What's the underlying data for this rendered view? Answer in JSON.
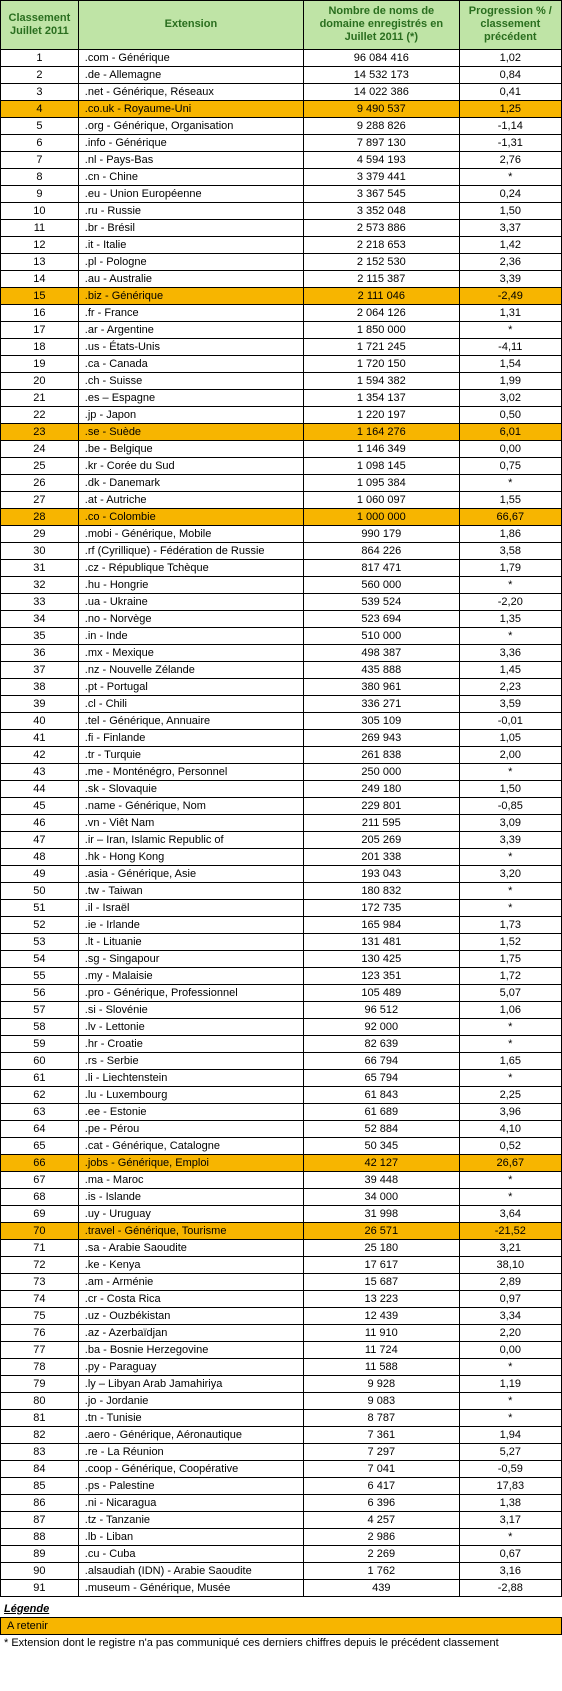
{
  "table": {
    "headers": {
      "rank": "Classement Juillet 2011",
      "ext": "Extension",
      "num": "Nombre de noms de domaine enregistrés en Juillet 2011 (*)",
      "prog": "Progression % / classement précédent"
    },
    "highlight_color": "#f7b500",
    "header_bg": "#bfe4a6",
    "header_fg": "#2a6e1f",
    "rows": [
      {
        "rank": "1",
        "ext": ".com - Générique",
        "num": "96 084 416",
        "prog": "1,02",
        "hl": false
      },
      {
        "rank": "2",
        "ext": ".de - Allemagne",
        "num": "14 532 173",
        "prog": "0,84",
        "hl": false
      },
      {
        "rank": "3",
        "ext": ".net - Générique, Réseaux",
        "num": "14 022 386",
        "prog": "0,41",
        "hl": false
      },
      {
        "rank": "4",
        "ext": ".co.uk  - Royaume-Uni",
        "num": "9 490 537",
        "prog": "1,25",
        "hl": true
      },
      {
        "rank": "5",
        "ext": ".org - Générique, Organisation",
        "num": "9 288 826",
        "prog": "-1,14",
        "hl": false
      },
      {
        "rank": "6",
        "ext": ".info - Générique",
        "num": "7 897 130",
        "prog": "-1,31",
        "hl": false
      },
      {
        "rank": "7",
        "ext": ".nl  - Pays-Bas",
        "num": "4 594 193",
        "prog": "2,76",
        "hl": false
      },
      {
        "rank": "8",
        "ext": ".cn - Chine",
        "num": "3 379 441",
        "prog": "*",
        "hl": false
      },
      {
        "rank": "9",
        "ext": ".eu - Union Européenne",
        "num": "3 367 545",
        "prog": "0,24",
        "hl": false
      },
      {
        "rank": "10",
        "ext": ".ru - Russie",
        "num": "3 352 048",
        "prog": "1,50",
        "hl": false
      },
      {
        "rank": "11",
        "ext": ".br - Brésil",
        "num": "2 573 886",
        "prog": "3,37",
        "hl": false
      },
      {
        "rank": "12",
        "ext": ".it - Italie",
        "num": "2 218 653",
        "prog": "1,42",
        "hl": false
      },
      {
        "rank": "13",
        "ext": ".pl - Pologne",
        "num": "2 152 530",
        "prog": "2,36",
        "hl": false
      },
      {
        "rank": "14",
        "ext": ".au - Australie",
        "num": "2 115 387",
        "prog": "3,39",
        "hl": false
      },
      {
        "rank": "15",
        "ext": ".biz - Générique",
        "num": "2 111 046",
        "prog": "-2,49",
        "hl": true
      },
      {
        "rank": "16",
        "ext": ".fr - France",
        "num": "2 064 126",
        "prog": "1,31",
        "hl": false
      },
      {
        "rank": "17",
        "ext": ".ar - Argentine",
        "num": "1 850 000",
        "prog": "*",
        "hl": false
      },
      {
        "rank": "18",
        "ext": ".us - États-Unis",
        "num": "1 721 245",
        "prog": "-4,11",
        "hl": false
      },
      {
        "rank": "19",
        "ext": ".ca - Canada",
        "num": "1 720 150",
        "prog": "1,54",
        "hl": false
      },
      {
        "rank": "20",
        "ext": ".ch - Suisse",
        "num": "1 594 382",
        "prog": "1,99",
        "hl": false
      },
      {
        "rank": "21",
        "ext": ".es  – Espagne",
        "num": "1 354 137",
        "prog": "3,02",
        "hl": false
      },
      {
        "rank": "22",
        "ext": ".jp - Japon",
        "num": "1 220 197",
        "prog": "0,50",
        "hl": false
      },
      {
        "rank": "23",
        "ext": ".se - Suède",
        "num": "1 164 276",
        "prog": "6,01",
        "hl": true
      },
      {
        "rank": "24",
        "ext": ".be - Belgique",
        "num": "1 146 349",
        "prog": "0,00",
        "hl": false
      },
      {
        "rank": "25",
        "ext": ".kr  - Corée du Sud",
        "num": "1 098 145",
        "prog": "0,75",
        "hl": false
      },
      {
        "rank": "26",
        "ext": ".dk - Danemark",
        "num": "1 095 384",
        "prog": "*",
        "hl": false
      },
      {
        "rank": "27",
        "ext": ".at - Autriche",
        "num": "1 060 097",
        "prog": "1,55",
        "hl": false
      },
      {
        "rank": "28",
        "ext": ".co - Colombie",
        "num": "1 000 000",
        "prog": "66,67",
        "hl": true
      },
      {
        "rank": "29",
        "ext": ".mobi - Générique, Mobile",
        "num": "990 179",
        "prog": "1,86",
        "hl": false
      },
      {
        "rank": "30",
        "ext": ".rf (Cyrillique) - Fédération de Russie",
        "num": "864 226",
        "prog": "3,58",
        "hl": false
      },
      {
        "rank": "31",
        "ext": ".cz - République Tchèque",
        "num": "817 471",
        "prog": "1,79",
        "hl": false
      },
      {
        "rank": "32",
        "ext": ".hu - Hongrie",
        "num": "560 000",
        "prog": "*",
        "hl": false
      },
      {
        "rank": "33",
        "ext": ".ua - Ukraine",
        "num": "539 524",
        "prog": "-2,20",
        "hl": false
      },
      {
        "rank": "34",
        "ext": ".no - Norvège",
        "num": "523 694",
        "prog": "1,35",
        "hl": false
      },
      {
        "rank": "35",
        "ext": ".in - Inde",
        "num": "510 000",
        "prog": "*",
        "hl": false
      },
      {
        "rank": "36",
        "ext": ".mx - Mexique",
        "num": "498 387",
        "prog": "3,36",
        "hl": false
      },
      {
        "rank": "37",
        "ext": ".nz - Nouvelle Zélande",
        "num": "435 888",
        "prog": "1,45",
        "hl": false
      },
      {
        "rank": "38",
        "ext": ".pt - Portugal",
        "num": "380 961",
        "prog": "2,23",
        "hl": false
      },
      {
        "rank": "39",
        "ext": ".cl - Chili",
        "num": "336 271",
        "prog": "3,59",
        "hl": false
      },
      {
        "rank": "40",
        "ext": ".tel - Générique, Annuaire",
        "num": "305 109",
        "prog": "-0,01",
        "hl": false
      },
      {
        "rank": "41",
        "ext": ".fi - Finlande",
        "num": "269 943",
        "prog": "1,05",
        "hl": false
      },
      {
        "rank": "42",
        "ext": ".tr - Turquie",
        "num": "261 838",
        "prog": "2,00",
        "hl": false
      },
      {
        "rank": "43",
        "ext": ".me - Monténégro, Personnel",
        "num": "250 000",
        "prog": "*",
        "hl": false
      },
      {
        "rank": "44",
        "ext": ".sk - Slovaquie",
        "num": "249 180",
        "prog": "1,50",
        "hl": false
      },
      {
        "rank": "45",
        "ext": ".name - Générique, Nom",
        "num": "229 801",
        "prog": "-0,85",
        "hl": false
      },
      {
        "rank": "46",
        "ext": ".vn - Viêt Nam",
        "num": "211 595",
        "prog": "3,09",
        "hl": false
      },
      {
        "rank": "47",
        "ext": ".ir  –  Iran, Islamic Republic of",
        "num": "205 269",
        "prog": "3,39",
        "hl": false
      },
      {
        "rank": "48",
        "ext": ".hk - Hong Kong",
        "num": "201 338",
        "prog": "*",
        "hl": false
      },
      {
        "rank": "49",
        "ext": ".asia - Générique, Asie",
        "num": "193 043",
        "prog": "3,20",
        "hl": false
      },
      {
        "rank": "50",
        "ext": ".tw - Taiwan",
        "num": "180 832",
        "prog": "*",
        "hl": false
      },
      {
        "rank": "51",
        "ext": ".il - Israël",
        "num": "172 735",
        "prog": "*",
        "hl": false
      },
      {
        "rank": "52",
        "ext": ".ie - Irlande",
        "num": "165 984",
        "prog": "1,73",
        "hl": false
      },
      {
        "rank": "53",
        "ext": ".lt - Lituanie",
        "num": "131 481",
        "prog": "1,52",
        "hl": false
      },
      {
        "rank": "54",
        "ext": ".sg - Singapour",
        "num": "130 425",
        "prog": "1,75",
        "hl": false
      },
      {
        "rank": "55",
        "ext": ".my - Malaisie",
        "num": "123 351",
        "prog": "1,72",
        "hl": false
      },
      {
        "rank": "56",
        "ext": ".pro - Générique, Professionnel",
        "num": "105 489",
        "prog": "5,07",
        "hl": false
      },
      {
        "rank": "57",
        "ext": ".si - Slovénie",
        "num": "96 512",
        "prog": "1,06",
        "hl": false
      },
      {
        "rank": "58",
        "ext": ".lv - Lettonie",
        "num": "92 000",
        "prog": "*",
        "hl": false
      },
      {
        "rank": "59",
        "ext": ".hr - Croatie",
        "num": "82 639",
        "prog": "*",
        "hl": false
      },
      {
        "rank": "60",
        "ext": ".rs - Serbie",
        "num": "66 794",
        "prog": "1,65",
        "hl": false
      },
      {
        "rank": "61",
        "ext": ".li - Liechtenstein",
        "num": "65 794",
        "prog": "*",
        "hl": false
      },
      {
        "rank": "62",
        "ext": ".lu - Luxembourg",
        "num": "61 843",
        "prog": "2,25",
        "hl": false
      },
      {
        "rank": "63",
        "ext": ".ee - Estonie",
        "num": "61 689",
        "prog": "3,96",
        "hl": false
      },
      {
        "rank": "64",
        "ext": ".pe - Pérou",
        "num": "52 884",
        "prog": "4,10",
        "hl": false
      },
      {
        "rank": "65",
        "ext": ".cat - Générique, Catalogne",
        "num": "50 345",
        "prog": "0,52",
        "hl": false
      },
      {
        "rank": "66",
        "ext": ".jobs - Générique, Emploi",
        "num": "42 127",
        "prog": "26,67",
        "hl": true
      },
      {
        "rank": "67",
        "ext": ".ma - Maroc",
        "num": "39 448",
        "prog": "*",
        "hl": false
      },
      {
        "rank": "68",
        "ext": ".is - Islande",
        "num": "34 000",
        "prog": "*",
        "hl": false
      },
      {
        "rank": "69",
        "ext": ".uy - Uruguay",
        "num": "31 998",
        "prog": "3,64",
        "hl": false
      },
      {
        "rank": "70",
        "ext": ".travel - Générique, Tourisme",
        "num": "26 571",
        "prog": "-21,52",
        "hl": true
      },
      {
        "rank": "71",
        "ext": ".sa - Arabie Saoudite",
        "num": "25 180",
        "prog": "3,21",
        "hl": false
      },
      {
        "rank": "72",
        "ext": ".ke - Kenya",
        "num": "17 617",
        "prog": "38,10",
        "hl": false
      },
      {
        "rank": "73",
        "ext": ".am - Arménie",
        "num": "15 687",
        "prog": "2,89",
        "hl": false
      },
      {
        "rank": "74",
        "ext": ".cr - Costa Rica",
        "num": "13 223",
        "prog": "0,97",
        "hl": false
      },
      {
        "rank": "75",
        "ext": ".uz - Ouzbékistan",
        "num": "12 439",
        "prog": "3,34",
        "hl": false
      },
      {
        "rank": "76",
        "ext": ".az - Azerbaïdjan",
        "num": "11 910",
        "prog": "2,20",
        "hl": false
      },
      {
        "rank": "77",
        "ext": ".ba - Bosnie Herzegovine",
        "num": "11 724",
        "prog": "0,00",
        "hl": false
      },
      {
        "rank": "78",
        "ext": ".py - Paraguay",
        "num": "11 588",
        "prog": "*",
        "hl": false
      },
      {
        "rank": "79",
        "ext": ".ly  –  Libyan Arab Jamahiriya",
        "num": "9 928",
        "prog": "1,19",
        "hl": false
      },
      {
        "rank": "80",
        "ext": ".jo - Jordanie",
        "num": "9 083",
        "prog": "*",
        "hl": false
      },
      {
        "rank": "81",
        "ext": ".tn - Tunisie",
        "num": "8 787",
        "prog": "*",
        "hl": false
      },
      {
        "rank": "82",
        "ext": ".aero - Générique, Aéronautique",
        "num": "7 361",
        "prog": "1,94",
        "hl": false
      },
      {
        "rank": "83",
        "ext": ".re - La Réunion",
        "num": "7 297",
        "prog": "5,27",
        "hl": false
      },
      {
        "rank": "84",
        "ext": ".coop - Générique, Coopérative",
        "num": "7 041",
        "prog": "-0,59",
        "hl": false
      },
      {
        "rank": "85",
        "ext": ".ps - Palestine",
        "num": "6 417",
        "prog": "17,83",
        "hl": false
      },
      {
        "rank": "86",
        "ext": ".ni - Nicaragua",
        "num": "6 396",
        "prog": "1,38",
        "hl": false
      },
      {
        "rank": "87",
        "ext": ".tz - Tanzanie",
        "num": "4 257",
        "prog": "3,17",
        "hl": false
      },
      {
        "rank": "88",
        "ext": ".lb - Liban",
        "num": "2 986",
        "prog": "*",
        "hl": false
      },
      {
        "rank": "89",
        "ext": ".cu - Cuba",
        "num": "2 269",
        "prog": "0,67",
        "hl": false
      },
      {
        "rank": "90",
        "ext": ".alsaudiah (IDN) - Arabie Saoudite",
        "num": "1 762",
        "prog": "3,16",
        "hl": false
      },
      {
        "rank": "91",
        "ext": ".museum - Générique, Musée",
        "num": "439",
        "prog": "-2,88",
        "hl": false
      }
    ]
  },
  "legend": {
    "title": "Légende",
    "highlight_label": "A retenir",
    "note": "* Extension dont le registre n'a pas communiqué ces derniers chiffres depuis le précédent classement"
  }
}
